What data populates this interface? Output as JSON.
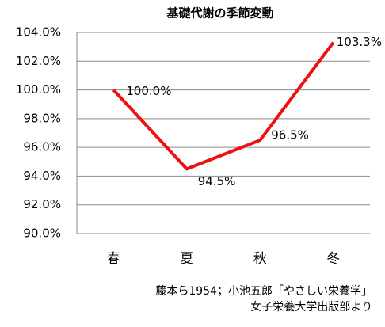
{
  "chart_data": {
    "type": "line",
    "title": "基礎代謝の季節変動",
    "categories": [
      "春",
      "夏",
      "秋",
      "冬"
    ],
    "series": [
      {
        "name": "基礎代謝",
        "color": "#ee1111",
        "values": [
          100.0,
          94.5,
          96.5,
          103.3
        ],
        "value_labels": [
          "100.0%",
          "94.5%",
          "96.5%",
          "103.3%"
        ]
      }
    ],
    "ylim": [
      90,
      104
    ],
    "yticks": [
      {
        "value": 90,
        "label": "90.0%"
      },
      {
        "value": 92,
        "label": "92.0%"
      },
      {
        "value": 94,
        "label": "94.0%"
      },
      {
        "value": 96,
        "label": "96.0%"
      },
      {
        "value": 98,
        "label": "98.0%"
      },
      {
        "value": 100,
        "label": "100.0%"
      },
      {
        "value": 102,
        "label": "102.0%"
      },
      {
        "value": 104,
        "label": "104.0%"
      }
    ],
    "grid": true,
    "legend": false,
    "source": [
      "藤本ら1954；小池五郎「やさしい栄養学」",
      "女子栄養大学出版部より"
    ]
  }
}
